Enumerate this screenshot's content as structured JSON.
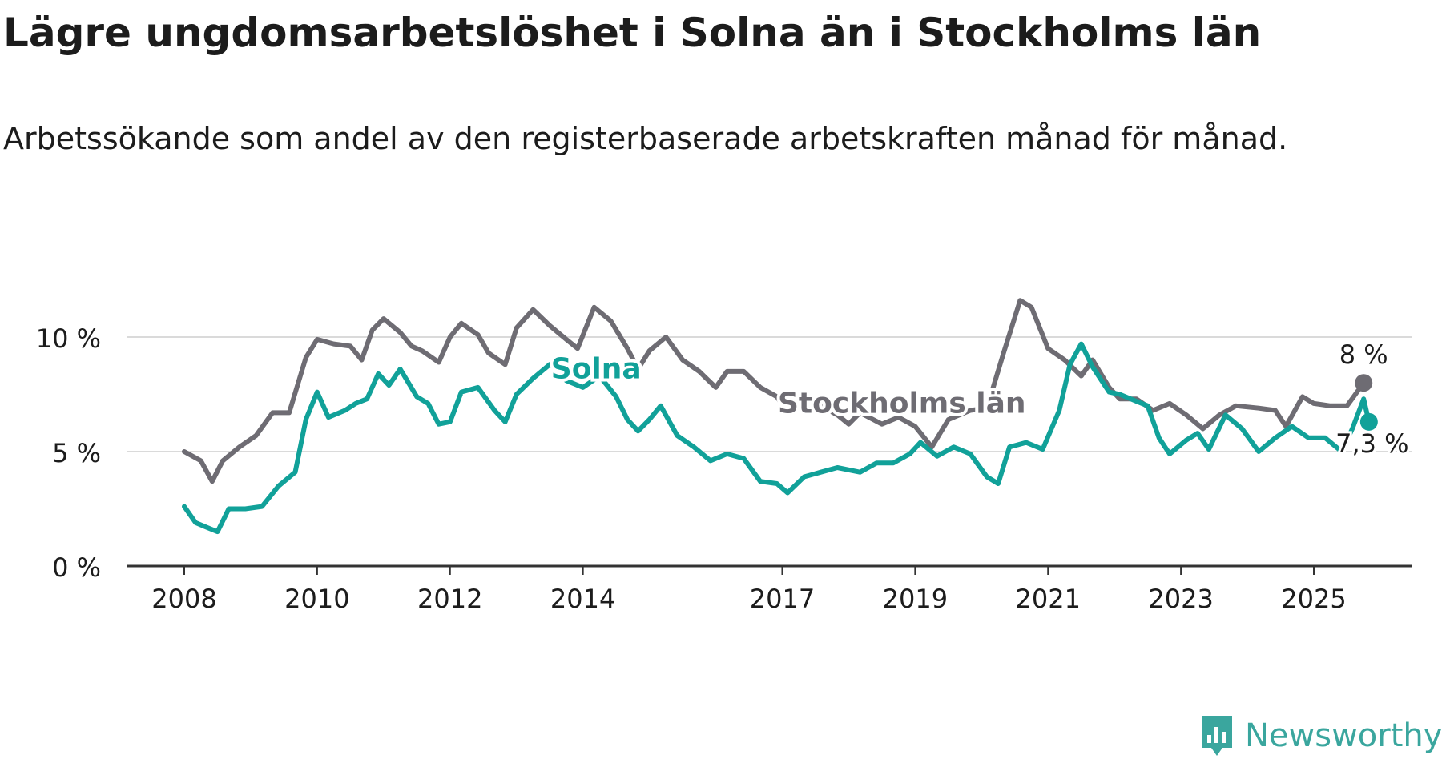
{
  "title": "Lägre ungdomsarbetslöshet i Solna än i Stockholms län",
  "subtitle": "Arbetssökande som andel av den registerbaserade arbetskraften månad för månad.",
  "colors": {
    "stockholm": "#6e6c73",
    "solna": "#11a199",
    "grid": "#dadada",
    "axis": "#333333",
    "text": "#1c1c1c"
  },
  "brand": {
    "name": "Newsworthy",
    "color": "#3aa69e",
    "icon": "newsworthy-bar-chart-icon"
  },
  "chart_data": {
    "type": "line",
    "title": "Lägre ungdomsarbetslöshet i Solna än i Stockholms län",
    "subtitle": "Arbetssökande som andel av den registerbaserade arbetskraften månad för månad.",
    "xlabel": "",
    "ylabel": "",
    "xlim": [
      2008.0,
      2026.1
    ],
    "ylim": [
      0,
      12
    ],
    "grid": true,
    "legend": "inline labels",
    "x_ticks": [
      {
        "value": 2008,
        "label": "2008"
      },
      {
        "value": 2010,
        "label": "2010"
      },
      {
        "value": 2012,
        "label": "2012"
      },
      {
        "value": 2014,
        "label": "2014"
      },
      {
        "value": 2017,
        "label": "2017"
      },
      {
        "value": 2019,
        "label": "2019"
      },
      {
        "value": 2021,
        "label": "2021"
      },
      {
        "value": 2023,
        "label": "2023"
      },
      {
        "value": 2025,
        "label": "2025"
      }
    ],
    "y_ticks": [
      {
        "value": 0,
        "label": "0 %"
      },
      {
        "value": 5,
        "label": "5 %"
      },
      {
        "value": 10,
        "label": "10 %"
      }
    ],
    "series": [
      {
        "name": "Stockholms län",
        "color": "#6e6c73",
        "end_label": "8 %",
        "points": [
          [
            2008.0,
            5.0
          ],
          [
            2008.25,
            4.6
          ],
          [
            2008.42,
            3.7
          ],
          [
            2008.58,
            4.6
          ],
          [
            2008.83,
            5.2
          ],
          [
            2009.08,
            5.7
          ],
          [
            2009.33,
            6.7
          ],
          [
            2009.58,
            6.7
          ],
          [
            2009.83,
            9.1
          ],
          [
            2010.0,
            9.9
          ],
          [
            2010.25,
            9.7
          ],
          [
            2010.5,
            9.6
          ],
          [
            2010.67,
            9.0
          ],
          [
            2010.83,
            10.3
          ],
          [
            2011.0,
            10.8
          ],
          [
            2011.25,
            10.2
          ],
          [
            2011.42,
            9.6
          ],
          [
            2011.58,
            9.4
          ],
          [
            2011.83,
            8.9
          ],
          [
            2012.0,
            10.0
          ],
          [
            2012.17,
            10.6
          ],
          [
            2012.42,
            10.1
          ],
          [
            2012.58,
            9.3
          ],
          [
            2012.83,
            8.8
          ],
          [
            2013.0,
            10.4
          ],
          [
            2013.25,
            11.2
          ],
          [
            2013.5,
            10.5
          ],
          [
            2013.75,
            9.9
          ],
          [
            2013.92,
            9.5
          ],
          [
            2014.17,
            11.3
          ],
          [
            2014.42,
            10.7
          ],
          [
            2014.67,
            9.5
          ],
          [
            2014.83,
            8.6
          ],
          [
            2015.0,
            9.4
          ],
          [
            2015.25,
            10.0
          ],
          [
            2015.5,
            9.0
          ],
          [
            2015.75,
            8.5
          ],
          [
            2016.0,
            7.8
          ],
          [
            2016.17,
            8.5
          ],
          [
            2016.42,
            8.5
          ],
          [
            2016.67,
            7.8
          ],
          [
            2016.92,
            7.4
          ],
          [
            2017.08,
            6.7
          ],
          [
            2017.33,
            7.5
          ],
          [
            2017.58,
            7.0
          ],
          [
            2017.83,
            6.6
          ],
          [
            2018.0,
            6.2
          ],
          [
            2018.17,
            6.7
          ],
          [
            2018.5,
            6.2
          ],
          [
            2018.75,
            6.5
          ],
          [
            2019.0,
            6.1
          ],
          [
            2019.25,
            5.2
          ],
          [
            2019.5,
            6.4
          ],
          [
            2019.83,
            6.8
          ],
          [
            2020.08,
            6.9
          ],
          [
            2020.33,
            9.3
          ],
          [
            2020.58,
            11.6
          ],
          [
            2020.75,
            11.3
          ],
          [
            2021.0,
            9.5
          ],
          [
            2021.25,
            9.0
          ],
          [
            2021.5,
            8.3
          ],
          [
            2021.67,
            9.0
          ],
          [
            2021.92,
            7.8
          ],
          [
            2022.08,
            7.3
          ],
          [
            2022.33,
            7.3
          ],
          [
            2022.58,
            6.8
          ],
          [
            2022.83,
            7.1
          ],
          [
            2023.08,
            6.6
          ],
          [
            2023.33,
            6.0
          ],
          [
            2023.58,
            6.6
          ],
          [
            2023.83,
            7.0
          ],
          [
            2024.17,
            6.9
          ],
          [
            2024.42,
            6.8
          ],
          [
            2024.58,
            6.1
          ],
          [
            2024.83,
            7.4
          ],
          [
            2025.0,
            7.1
          ],
          [
            2025.25,
            7.0
          ],
          [
            2025.5,
            7.0
          ],
          [
            2025.75,
            8.0
          ]
        ]
      },
      {
        "name": "Solna",
        "color": "#11a199",
        "end_label": "7,3 %",
        "points": [
          [
            2008.0,
            2.6
          ],
          [
            2008.17,
            1.9
          ],
          [
            2008.33,
            1.7
          ],
          [
            2008.5,
            1.5
          ],
          [
            2008.67,
            2.5
          ],
          [
            2008.92,
            2.5
          ],
          [
            2009.17,
            2.6
          ],
          [
            2009.42,
            3.5
          ],
          [
            2009.67,
            4.1
          ],
          [
            2009.83,
            6.4
          ],
          [
            2010.0,
            7.6
          ],
          [
            2010.17,
            6.5
          ],
          [
            2010.42,
            6.8
          ],
          [
            2010.58,
            7.1
          ],
          [
            2010.75,
            7.3
          ],
          [
            2010.92,
            8.4
          ],
          [
            2011.08,
            7.9
          ],
          [
            2011.25,
            8.6
          ],
          [
            2011.5,
            7.4
          ],
          [
            2011.67,
            7.1
          ],
          [
            2011.83,
            6.2
          ],
          [
            2012.0,
            6.3
          ],
          [
            2012.17,
            7.6
          ],
          [
            2012.42,
            7.8
          ],
          [
            2012.67,
            6.8
          ],
          [
            2012.83,
            6.3
          ],
          [
            2013.0,
            7.5
          ],
          [
            2013.25,
            8.2
          ],
          [
            2013.5,
            8.8
          ],
          [
            2013.75,
            8.1
          ],
          [
            2014.0,
            7.8
          ],
          [
            2014.25,
            8.3
          ],
          [
            2014.5,
            7.4
          ],
          [
            2014.67,
            6.4
          ],
          [
            2014.83,
            5.9
          ],
          [
            2015.0,
            6.4
          ],
          [
            2015.17,
            7.0
          ],
          [
            2015.42,
            5.7
          ],
          [
            2015.67,
            5.2
          ],
          [
            2015.92,
            4.6
          ],
          [
            2016.17,
            4.9
          ],
          [
            2016.42,
            4.7
          ],
          [
            2016.67,
            3.7
          ],
          [
            2016.92,
            3.6
          ],
          [
            2017.08,
            3.2
          ],
          [
            2017.33,
            3.9
          ],
          [
            2017.58,
            4.1
          ],
          [
            2017.83,
            4.3
          ],
          [
            2018.17,
            4.1
          ],
          [
            2018.42,
            4.5
          ],
          [
            2018.67,
            4.5
          ],
          [
            2018.92,
            4.9
          ],
          [
            2019.08,
            5.4
          ],
          [
            2019.33,
            4.8
          ],
          [
            2019.58,
            5.2
          ],
          [
            2019.83,
            4.9
          ],
          [
            2020.08,
            3.9
          ],
          [
            2020.25,
            3.6
          ],
          [
            2020.42,
            5.2
          ],
          [
            2020.67,
            5.4
          ],
          [
            2020.92,
            5.1
          ],
          [
            2021.17,
            6.8
          ],
          [
            2021.33,
            8.8
          ],
          [
            2021.5,
            9.7
          ],
          [
            2021.67,
            8.7
          ],
          [
            2021.92,
            7.6
          ],
          [
            2022.08,
            7.5
          ],
          [
            2022.33,
            7.2
          ],
          [
            2022.5,
            7.0
          ],
          [
            2022.67,
            5.6
          ],
          [
            2022.83,
            4.9
          ],
          [
            2023.08,
            5.5
          ],
          [
            2023.25,
            5.8
          ],
          [
            2023.42,
            5.1
          ],
          [
            2023.67,
            6.6
          ],
          [
            2023.92,
            6.0
          ],
          [
            2024.17,
            5.0
          ],
          [
            2024.42,
            5.6
          ],
          [
            2024.67,
            6.1
          ],
          [
            2024.92,
            5.6
          ],
          [
            2025.17,
            5.6
          ],
          [
            2025.42,
            5.0
          ],
          [
            2025.58,
            6.0
          ],
          [
            2025.83,
            6.3
          ],
          [
            2025.75,
            7.3
          ]
        ]
      }
    ]
  }
}
